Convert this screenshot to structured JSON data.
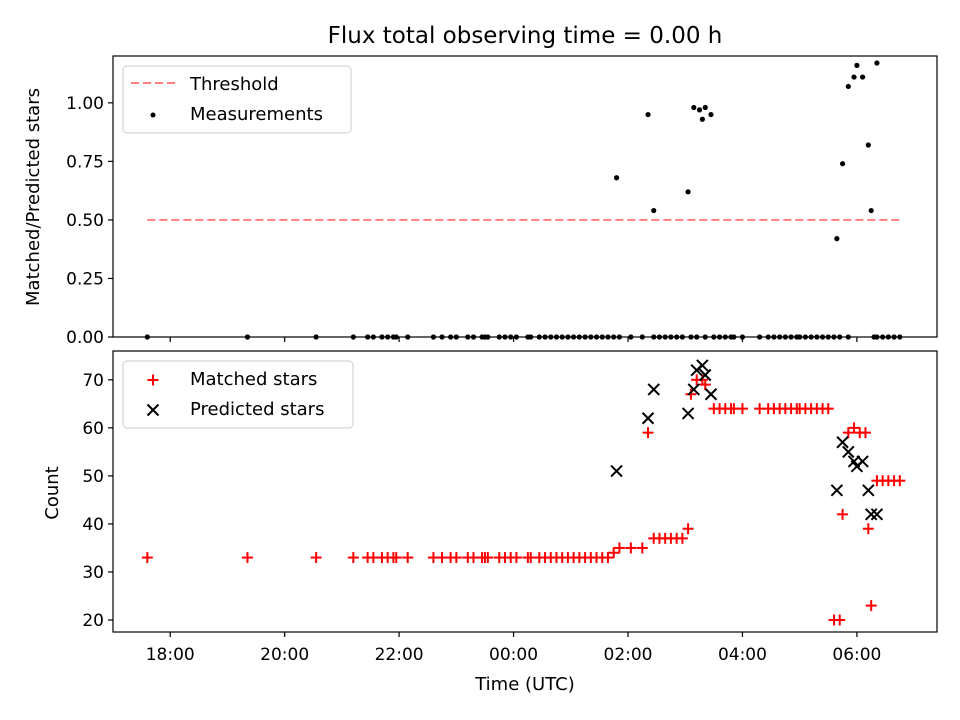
{
  "figure": {
    "title": "Flux total observing time = 0.00 h",
    "xlabel": "Time (UTC)"
  },
  "chart_data": [
    {
      "type": "scatter",
      "ylabel": "Matched/Predicted stars",
      "xlim_hours": [
        17.0,
        31.4
      ],
      "ylim": [
        0,
        1.2
      ],
      "yticks": [
        0.0,
        0.25,
        0.5,
        0.75,
        1.0
      ],
      "ytick_labels": [
        "0.00",
        "0.25",
        "0.50",
        "0.75",
        "1.00"
      ],
      "legend_position": "upper-left",
      "threshold": {
        "name": "Threshold",
        "value": 0.5,
        "x_range_hours": [
          17.6,
          30.8
        ],
        "color": "#ff7f7f",
        "style": "dashed"
      },
      "series": [
        {
          "name": "Measurements",
          "marker": "dot",
          "color": "#000000",
          "points": [
            [
              17.6,
              0
            ],
            [
              19.35,
              0
            ],
            [
              20.55,
              0
            ],
            [
              21.2,
              0
            ],
            [
              21.45,
              0
            ],
            [
              21.55,
              0
            ],
            [
              21.7,
              0
            ],
            [
              21.8,
              0
            ],
            [
              21.9,
              0
            ],
            [
              21.95,
              0
            ],
            [
              22.15,
              0
            ],
            [
              22.6,
              0
            ],
            [
              22.75,
              0
            ],
            [
              22.9,
              0
            ],
            [
              23.0,
              0
            ],
            [
              23.2,
              0
            ],
            [
              23.3,
              0
            ],
            [
              23.45,
              0
            ],
            [
              23.5,
              0
            ],
            [
              23.55,
              0
            ],
            [
              23.75,
              0
            ],
            [
              23.85,
              0
            ],
            [
              23.95,
              0
            ],
            [
              24.05,
              0
            ],
            [
              24.25,
              0
            ],
            [
              24.3,
              0
            ],
            [
              24.45,
              0
            ],
            [
              24.55,
              0
            ],
            [
              24.65,
              0
            ],
            [
              24.75,
              0
            ],
            [
              24.85,
              0
            ],
            [
              24.95,
              0
            ],
            [
              25.05,
              0
            ],
            [
              25.15,
              0
            ],
            [
              25.25,
              0
            ],
            [
              25.35,
              0
            ],
            [
              25.45,
              0
            ],
            [
              25.55,
              0
            ],
            [
              25.65,
              0
            ],
            [
              25.75,
              0
            ],
            [
              25.85,
              0
            ],
            [
              26.05,
              0
            ],
            [
              26.25,
              0
            ],
            [
              26.45,
              0
            ],
            [
              26.55,
              0
            ],
            [
              26.65,
              0
            ],
            [
              26.75,
              0
            ],
            [
              26.85,
              0
            ],
            [
              26.95,
              0
            ],
            [
              27.1,
              0
            ],
            [
              27.2,
              0
            ],
            [
              27.35,
              0
            ],
            [
              27.5,
              0
            ],
            [
              27.6,
              0
            ],
            [
              27.7,
              0
            ],
            [
              27.8,
              0
            ],
            [
              27.85,
              0
            ],
            [
              28.0,
              0
            ],
            [
              28.3,
              0
            ],
            [
              28.45,
              0
            ],
            [
              28.55,
              0
            ],
            [
              28.65,
              0
            ],
            [
              28.75,
              0
            ],
            [
              28.85,
              0
            ],
            [
              28.95,
              0
            ],
            [
              29.0,
              0
            ],
            [
              29.1,
              0
            ],
            [
              29.2,
              0
            ],
            [
              29.3,
              0
            ],
            [
              29.4,
              0
            ],
            [
              29.5,
              0
            ],
            [
              29.6,
              0
            ],
            [
              29.7,
              0
            ],
            [
              29.85,
              0
            ],
            [
              30.3,
              0
            ],
            [
              30.35,
              0
            ],
            [
              30.45,
              0
            ],
            [
              30.55,
              0
            ],
            [
              30.65,
              0
            ],
            [
              30.75,
              0
            ],
            [
              25.8,
              0.68
            ],
            [
              26.35,
              0.95
            ],
            [
              26.45,
              0.54
            ],
            [
              27.05,
              0.62
            ],
            [
              27.15,
              0.98
            ],
            [
              27.25,
              0.97
            ],
            [
              27.3,
              0.93
            ],
            [
              27.35,
              0.98
            ],
            [
              27.45,
              0.95
            ],
            [
              29.65,
              0.42
            ],
            [
              29.75,
              0.74
            ],
            [
              29.85,
              1.07
            ],
            [
              29.95,
              1.11
            ],
            [
              30.0,
              1.16
            ],
            [
              30.1,
              1.11
            ],
            [
              30.2,
              0.82
            ],
            [
              30.25,
              0.54
            ],
            [
              30.35,
              1.17
            ]
          ]
        }
      ]
    },
    {
      "type": "scatter",
      "ylabel": "Count",
      "xlim_hours": [
        17.0,
        31.4
      ],
      "ylim": [
        17.5,
        76
      ],
      "yticks": [
        20,
        30,
        40,
        50,
        60,
        70
      ],
      "xticks_hours": [
        18,
        20,
        22,
        24,
        26,
        28,
        30
      ],
      "xtick_labels": [
        "18:00",
        "20:00",
        "22:00",
        "00:00",
        "02:00",
        "04:00",
        "06:00"
      ],
      "legend_position": "upper-left",
      "series": [
        {
          "name": "Matched stars",
          "marker": "plus",
          "color": "#ff0000",
          "points": [
            [
              17.6,
              33
            ],
            [
              19.35,
              33
            ],
            [
              20.55,
              33
            ],
            [
              21.2,
              33
            ],
            [
              21.45,
              33
            ],
            [
              21.55,
              33
            ],
            [
              21.7,
              33
            ],
            [
              21.8,
              33
            ],
            [
              21.9,
              33
            ],
            [
              21.95,
              33
            ],
            [
              22.15,
              33
            ],
            [
              22.6,
              33
            ],
            [
              22.75,
              33
            ],
            [
              22.9,
              33
            ],
            [
              23.0,
              33
            ],
            [
              23.2,
              33
            ],
            [
              23.3,
              33
            ],
            [
              23.45,
              33
            ],
            [
              23.5,
              33
            ],
            [
              23.55,
              33
            ],
            [
              23.75,
              33
            ],
            [
              23.85,
              33
            ],
            [
              23.95,
              33
            ],
            [
              24.05,
              33
            ],
            [
              24.25,
              33
            ],
            [
              24.3,
              33
            ],
            [
              24.45,
              33
            ],
            [
              24.55,
              33
            ],
            [
              24.65,
              33
            ],
            [
              24.75,
              33
            ],
            [
              24.85,
              33
            ],
            [
              24.95,
              33
            ],
            [
              25.05,
              33
            ],
            [
              25.15,
              33
            ],
            [
              25.25,
              33
            ],
            [
              25.35,
              33
            ],
            [
              25.45,
              33
            ],
            [
              25.55,
              33
            ],
            [
              25.65,
              33
            ],
            [
              25.75,
              34
            ],
            [
              25.85,
              35
            ],
            [
              26.05,
              35
            ],
            [
              26.25,
              35
            ],
            [
              26.35,
              59
            ],
            [
              26.45,
              37
            ],
            [
              26.55,
              37
            ],
            [
              26.65,
              37
            ],
            [
              26.75,
              37
            ],
            [
              26.85,
              37
            ],
            [
              26.95,
              37
            ],
            [
              27.05,
              39
            ],
            [
              27.1,
              67
            ],
            [
              27.2,
              70
            ],
            [
              27.3,
              70
            ],
            [
              27.35,
              69
            ],
            [
              27.5,
              64
            ],
            [
              27.6,
              64
            ],
            [
              27.7,
              64
            ],
            [
              27.8,
              64
            ],
            [
              27.85,
              64
            ],
            [
              28.0,
              64
            ],
            [
              28.3,
              64
            ],
            [
              28.45,
              64
            ],
            [
              28.55,
              64
            ],
            [
              28.65,
              64
            ],
            [
              28.75,
              64
            ],
            [
              28.85,
              64
            ],
            [
              28.95,
              64
            ],
            [
              29.0,
              64
            ],
            [
              29.1,
              64
            ],
            [
              29.2,
              64
            ],
            [
              29.3,
              64
            ],
            [
              29.4,
              64
            ],
            [
              29.5,
              64
            ],
            [
              29.6,
              20
            ],
            [
              29.7,
              20
            ],
            [
              29.75,
              42
            ],
            [
              29.85,
              59
            ],
            [
              29.95,
              60
            ],
            [
              30.05,
              59
            ],
            [
              30.15,
              59
            ],
            [
              30.2,
              39
            ],
            [
              30.25,
              23
            ],
            [
              30.35,
              49
            ],
            [
              30.45,
              49
            ],
            [
              30.55,
              49
            ],
            [
              30.65,
              49
            ],
            [
              30.75,
              49
            ]
          ]
        },
        {
          "name": "Predicted stars",
          "marker": "x",
          "color": "#000000",
          "points": [
            [
              25.8,
              51
            ],
            [
              26.35,
              62
            ],
            [
              26.45,
              68
            ],
            [
              27.05,
              63
            ],
            [
              27.15,
              68
            ],
            [
              27.2,
              72
            ],
            [
              27.3,
              73
            ],
            [
              27.35,
              71
            ],
            [
              27.45,
              67
            ],
            [
              29.65,
              47
            ],
            [
              29.75,
              57
            ],
            [
              29.85,
              55
            ],
            [
              29.95,
              53
            ],
            [
              30.0,
              52
            ],
            [
              30.1,
              53
            ],
            [
              30.2,
              47
            ],
            [
              30.25,
              42
            ],
            [
              30.35,
              42
            ]
          ]
        }
      ]
    }
  ]
}
